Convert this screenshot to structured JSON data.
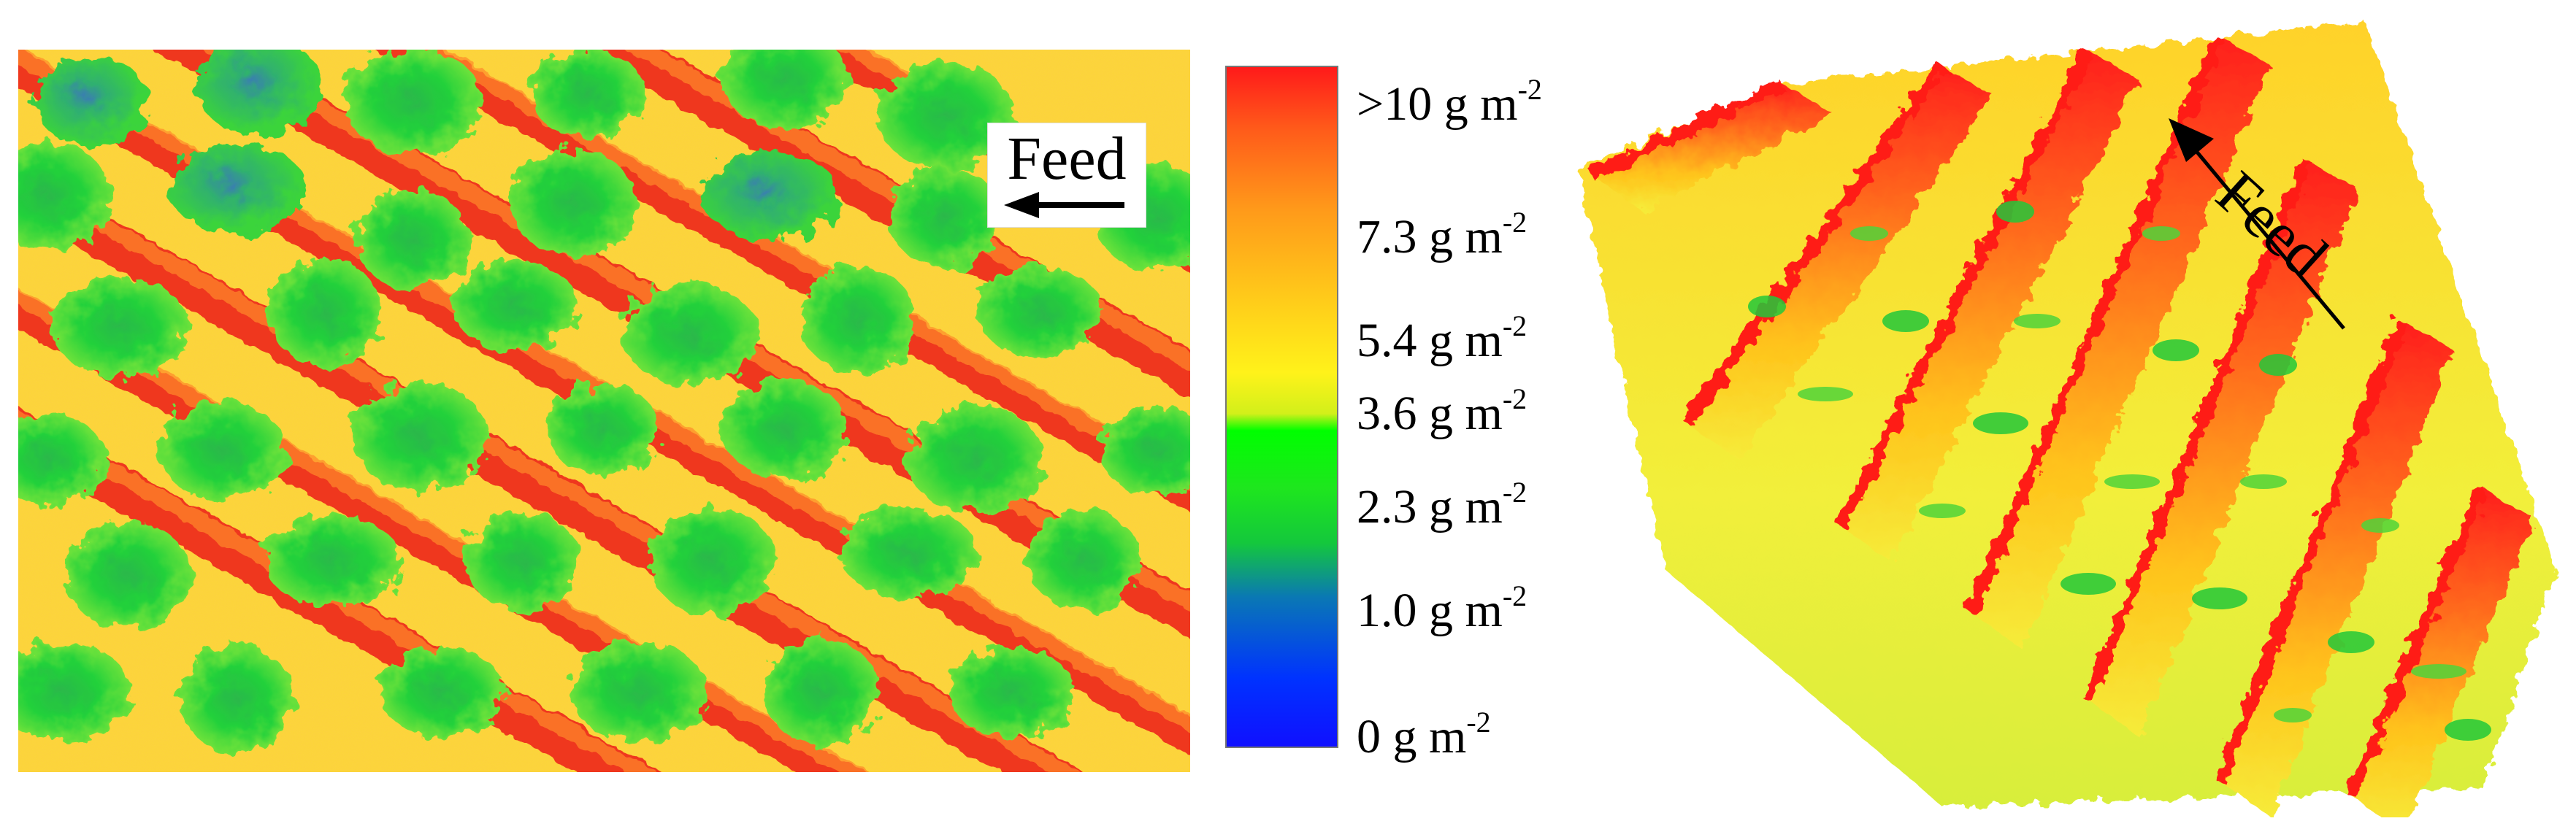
{
  "map2d": {
    "feed_label": "Feed",
    "feed_arrow_icon": "left-arrow-icon"
  },
  "colorbar": {
    "ticks": [
      {
        "text": ">10 g m",
        "exp": "-2"
      },
      {
        "text": "7.3 g m",
        "exp": "-2"
      },
      {
        "text": "5.4 g m",
        "exp": "-2"
      },
      {
        "text": "3.6 g m",
        "exp": "-2"
      },
      {
        "text": "2.3 g m",
        "exp": "-2"
      },
      {
        "text": "1.0 g m",
        "exp": "-2"
      },
      {
        "text": "0 g m",
        "exp": "-2"
      }
    ],
    "colors": {
      "high": "#ff1a1a",
      "mid_high": "#ff9a1a",
      "mid": "#fff21a",
      "mid_low": "#00ff00",
      "low": "#1010ff"
    }
  },
  "surface3d": {
    "feed_label": "Feed",
    "feed_arrow_icon": "diagonal-arrow-icon"
  }
}
